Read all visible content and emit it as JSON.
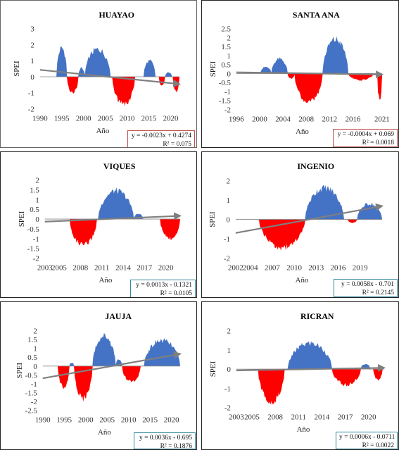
{
  "chart_data": [
    {
      "type": "bar",
      "title": "HUAYAO",
      "ylabel": "SPEI",
      "xlabel": "Año",
      "ylim": [
        -2,
        3
      ],
      "yticks": [
        3,
        2,
        1,
        0,
        -1,
        -2
      ],
      "xlim": [
        1990,
        2022
      ],
      "xticks": [
        1990,
        1995,
        2000,
        2005,
        2010,
        2015,
        2020
      ],
      "equation": "y = -0.0023x + 0.4274",
      "r2": "R² = 0.075",
      "border_color": "#666666",
      "eq_border_color": "#c0504d",
      "trend": {
        "slope": -0.0023,
        "intercept": 0.4274
      },
      "segments": [
        {
          "start": 1993.8,
          "end": 1996.2,
          "peak": 2.0,
          "color": "#4472c4"
        },
        {
          "start": 1996.2,
          "end": 1998.8,
          "peak": -1.1,
          "color": "#ff0000"
        },
        {
          "start": 1998.8,
          "end": 2000.3,
          "peak": 0.6,
          "color": "#4472c4"
        },
        {
          "start": 2000.3,
          "end": 2006.2,
          "peak": 1.9,
          "color": "#4472c4"
        },
        {
          "start": 2006.6,
          "end": 2011.8,
          "peak": -1.9,
          "color": "#ff0000"
        },
        {
          "start": 2013.8,
          "end": 2016.5,
          "peak": 1.1,
          "color": "#4472c4"
        },
        {
          "start": 2017.3,
          "end": 2018.7,
          "peak": -0.6,
          "color": "#ff0000"
        },
        {
          "start": 2018.7,
          "end": 2020.3,
          "peak": 0.3,
          "color": "#4472c4"
        },
        {
          "start": 2020.5,
          "end": 2022.0,
          "peak": -1.0,
          "color": "#ff0000"
        }
      ]
    },
    {
      "type": "bar",
      "title": "SANTA ANA",
      "ylabel": "SPEI",
      "xlabel": "Año",
      "ylim": [
        -2,
        2.5
      ],
      "yticks": [
        2.5,
        2,
        1.5,
        1,
        0.5,
        0,
        -0.5,
        -1,
        -1.5,
        -2
      ],
      "xlim": [
        1996,
        2021
      ],
      "xticks": [
        1996,
        2000,
        2004,
        2008,
        2012,
        2016,
        2021
      ],
      "equation": "y = -0.0004x + 0.069",
      "r2": "R² = 0.0018",
      "border_color": "#222222",
      "eq_border_color": "#c0504d",
      "trend": {
        "slope": -0.0004,
        "intercept": 0.069
      },
      "segments": [
        {
          "start": 2000.1,
          "end": 2002.0,
          "peak": 0.4,
          "color": "#4472c4"
        },
        {
          "start": 2002.0,
          "end": 2004.8,
          "peak": 0.9,
          "color": "#4472c4"
        },
        {
          "start": 2004.8,
          "end": 2006.0,
          "peak": -0.3,
          "color": "#ff0000"
        },
        {
          "start": 2006.0,
          "end": 2010.8,
          "peak": -1.8,
          "color": "#ff0000"
        },
        {
          "start": 2010.8,
          "end": 2015.2,
          "peak": 2.1,
          "color": "#4472c4"
        },
        {
          "start": 2015.2,
          "end": 2019.5,
          "peak": -0.4,
          "color": "#ff0000"
        },
        {
          "start": 2020.2,
          "end": 2021.0,
          "peak": -1.6,
          "color": "#ff0000"
        }
      ]
    },
    {
      "type": "bar",
      "title": "VIQUES",
      "ylabel": "SPEI",
      "xlabel": "Año",
      "ylim": [
        -2,
        2
      ],
      "yticks": [
        2,
        1.5,
        1,
        0.5,
        0,
        -0.5,
        -1,
        -1.5,
        -2
      ],
      "xlim": [
        2003,
        2022
      ],
      "xticks": [
        2003,
        2005,
        2008,
        2011,
        2014,
        2017,
        2020
      ],
      "equation": "y = 0.0013x - 0.1321",
      "r2": "R² = 0.0105",
      "border_color": "#222222",
      "eq_border_color": "#31859c",
      "trend": {
        "slope": 0.0013,
        "intercept": -0.1321
      },
      "segments": [
        {
          "start": 2006.5,
          "end": 2010.3,
          "peak": -1.5,
          "color": "#ff0000"
        },
        {
          "start": 2010.5,
          "end": 2015.5,
          "peak": 1.6,
          "color": "#4472c4"
        },
        {
          "start": 2015.5,
          "end": 2016.8,
          "peak": 0.3,
          "color": "#4472c4"
        },
        {
          "start": 2019.2,
          "end": 2022.0,
          "peak": -1.1,
          "color": "#ff0000"
        }
      ]
    },
    {
      "type": "bar",
      "title": "INGENIO",
      "ylabel": "SPEI",
      "xlabel": "Año",
      "ylim": [
        -2,
        2
      ],
      "yticks": [
        2,
        1,
        0,
        -1,
        -2
      ],
      "xlim": [
        2002,
        2022
      ],
      "xticks": [
        2002,
        2004,
        2007,
        2010,
        2013,
        2016,
        2019
      ],
      "equation": "y = 0.0058x - 0.701",
      "r2": "R² = 0.2145",
      "border_color": "#222222",
      "eq_border_color": "#31859c",
      "trend": {
        "slope": 0.0058,
        "intercept": -0.701
      },
      "segments": [
        {
          "start": 2005.2,
          "end": 2011.5,
          "peak": -1.6,
          "color": "#ff0000"
        },
        {
          "start": 2011.5,
          "end": 2016.8,
          "peak": 1.8,
          "color": "#4472c4"
        },
        {
          "start": 2017.3,
          "end": 2018.6,
          "peak": -0.2,
          "color": "#ff0000"
        },
        {
          "start": 2018.6,
          "end": 2022.0,
          "peak": 0.9,
          "color": "#4472c4"
        }
      ]
    },
    {
      "type": "bar",
      "title": "JAUJA",
      "ylabel": "SPEI",
      "xlabel": "Año",
      "ylim": [
        -2.5,
        2
      ],
      "yticks": [
        2,
        1.5,
        1,
        0.5,
        0,
        -0.5,
        -1,
        -1.5,
        -2,
        -2.5
      ],
      "xlim": [
        1990,
        2022
      ],
      "xticks": [
        1990,
        1995,
        2000,
        2005,
        2010,
        2015,
        2020
      ],
      "equation": "y = 0.0036x - 0.695",
      "r2": "R² = 0.1876",
      "border_color": "#222222",
      "eq_border_color": "#31859c",
      "trend": {
        "slope": 0.0036,
        "intercept": -0.695
      },
      "segments": [
        {
          "start": 1993.5,
          "end": 1996.2,
          "peak": -1.3,
          "color": "#ff0000"
        },
        {
          "start": 1996.2,
          "end": 1997.3,
          "peak": 0.2,
          "color": "#4472c4"
        },
        {
          "start": 1997.3,
          "end": 2001.6,
          "peak": -2.0,
          "color": "#ff0000"
        },
        {
          "start": 2001.6,
          "end": 2007.0,
          "peak": 1.9,
          "color": "#4472c4"
        },
        {
          "start": 2007.0,
          "end": 2008.5,
          "peak": 0.4,
          "color": "#4472c4"
        },
        {
          "start": 2008.5,
          "end": 2012.8,
          "peak": -1.0,
          "color": "#ff0000"
        },
        {
          "start": 2013.6,
          "end": 2022.0,
          "peak": 1.6,
          "color": "#4472c4"
        }
      ]
    },
    {
      "type": "bar",
      "title": "RICRAN",
      "ylabel": "SPEI",
      "xlabel": "Año",
      "ylim": [
        -2,
        2
      ],
      "yticks": [
        2,
        1,
        0,
        -1,
        -2
      ],
      "xlim": [
        2003,
        2022
      ],
      "xticks": [
        2003,
        2005,
        2008,
        2011,
        2014,
        2017,
        2020
      ],
      "equation": "y = 0.0006x - 0.0711",
      "r2": "R² = 0.0022",
      "border_color": "#222222",
      "eq_border_color": "#31859c",
      "trend": {
        "slope": 0.0006,
        "intercept": -0.0711
      },
      "segments": [
        {
          "start": 2005.8,
          "end": 2009.2,
          "peak": -1.9,
          "color": "#ff0000"
        },
        {
          "start": 2009.6,
          "end": 2015.3,
          "peak": 1.5,
          "color": "#4472c4"
        },
        {
          "start": 2015.3,
          "end": 2019.0,
          "peak": -0.9,
          "color": "#ff0000"
        },
        {
          "start": 2019.0,
          "end": 2020.2,
          "peak": 0.3,
          "color": "#4472c4"
        },
        {
          "start": 2020.6,
          "end": 2021.8,
          "peak": -0.6,
          "color": "#ff0000"
        }
      ]
    }
  ]
}
